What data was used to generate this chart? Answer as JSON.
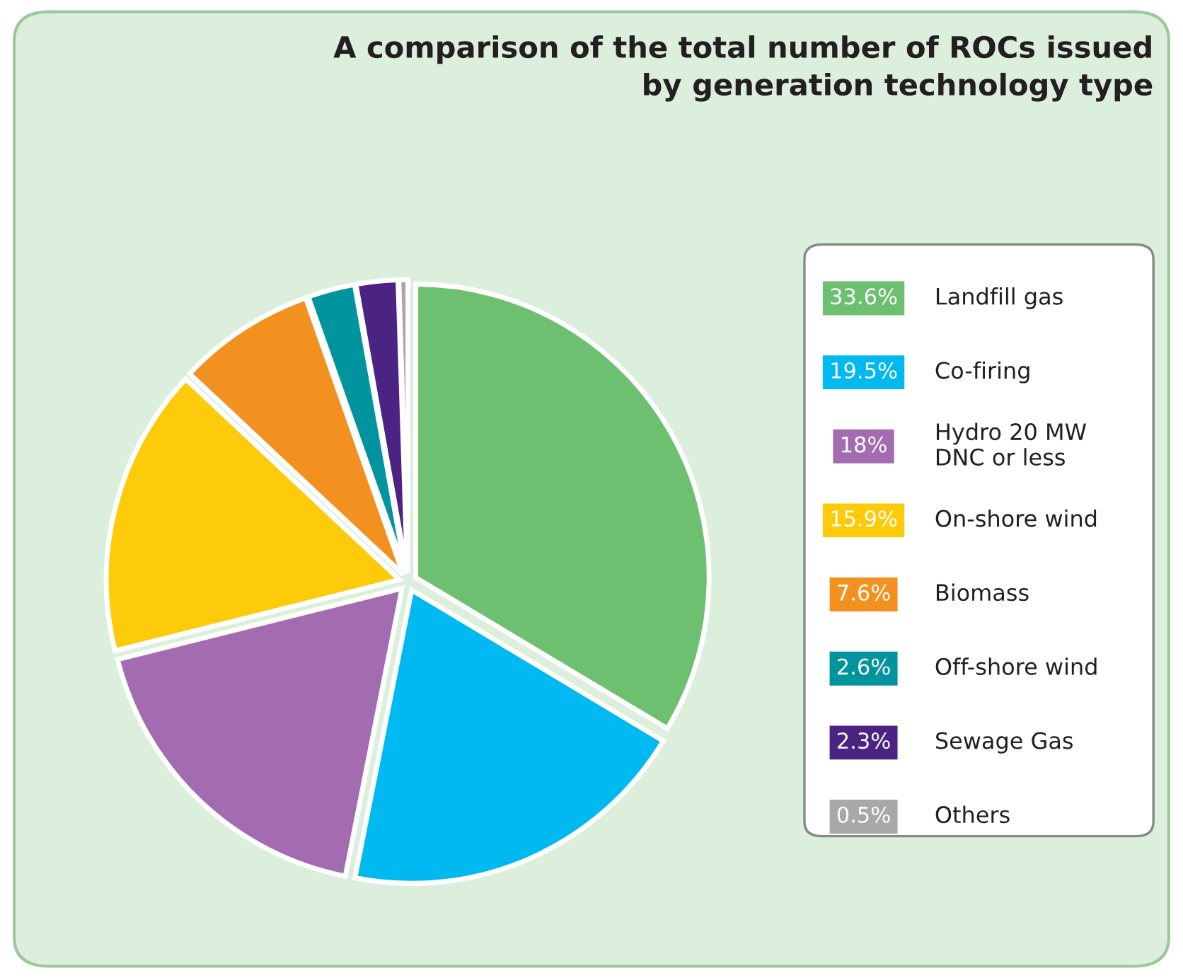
{
  "chart_data": {
    "type": "pie",
    "title": "A comparison of the total number of ROCs issued\nby generation technology type",
    "categories": [
      "Landfill gas",
      "Co-firing",
      "Hydro 20 MW\nDNC or less",
      "On-shore wind",
      "Biomass",
      "Off-shore wind",
      "Sewage Gas",
      "Others"
    ],
    "values": [
      33.6,
      19.5,
      18,
      15.9,
      7.6,
      2.6,
      2.3,
      0.5
    ],
    "colors": [
      "#6cc070",
      "#00b9f0",
      "#a36cb0",
      "#fdcb0a",
      "#f39120",
      "#00959e",
      "#4b2483",
      "#a8a8a8"
    ],
    "value_labels": [
      "33.6%",
      "19.5%",
      "18%",
      "15.9%",
      "7.6%",
      "2.6%",
      "2.3%",
      "0.5%"
    ],
    "legend": "right"
  }
}
